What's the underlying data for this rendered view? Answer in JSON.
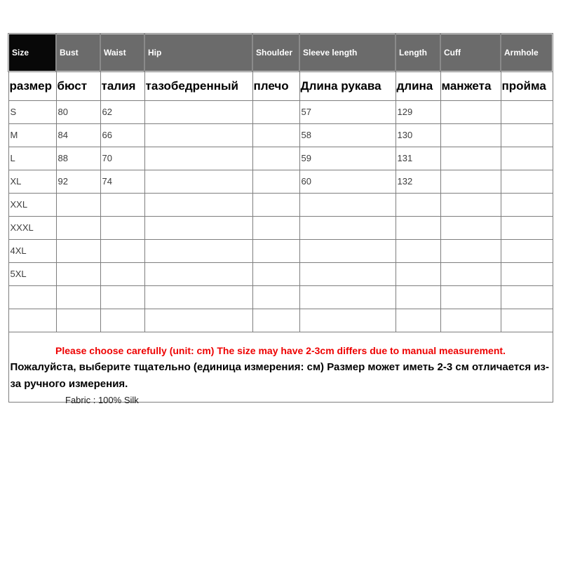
{
  "colors": {
    "header_bg": "#6b6b6b",
    "header_text": "#ffffff",
    "size_cell_bg": "#080808",
    "warning_red": "#ee0000"
  },
  "table": {
    "columns": [
      {
        "key": "size",
        "en": "Size",
        "ru": "размер"
      },
      {
        "key": "bust",
        "en": "Bust",
        "ru": "бюст"
      },
      {
        "key": "waist",
        "en": "Waist",
        "ru": "талия"
      },
      {
        "key": "hip",
        "en": "Hip",
        "ru": "тазобедренный"
      },
      {
        "key": "shoulder",
        "en": "Shoulder",
        "ru": "плечо"
      },
      {
        "key": "sleeve",
        "en": "Sleeve length",
        "ru": "Длина рукава"
      },
      {
        "key": "length",
        "en": "Length",
        "ru": "длина"
      },
      {
        "key": "cuff",
        "en": "Cuff",
        "ru": "манжета"
      },
      {
        "key": "armhole",
        "en": "Armhole",
        "ru": "пройма"
      }
    ],
    "rows": [
      [
        "S",
        "80",
        "62",
        "",
        "",
        "57",
        "129",
        "",
        ""
      ],
      [
        "M",
        "84",
        "66",
        "",
        "",
        "58",
        "130",
        "",
        ""
      ],
      [
        "L",
        "88",
        "70",
        "",
        "",
        "59",
        "131",
        "",
        ""
      ],
      [
        "XL",
        "92",
        "74",
        "",
        "",
        "60",
        "132",
        "",
        ""
      ],
      [
        "XXL",
        "",
        "",
        "",
        "",
        "",
        "",
        "",
        ""
      ],
      [
        "XXXL",
        "",
        "",
        "",
        "",
        "",
        "",
        "",
        ""
      ],
      [
        "4XL",
        "",
        "",
        "",
        "",
        "",
        "",
        "",
        ""
      ],
      [
        "5XL",
        "",
        "",
        "",
        "",
        "",
        "",
        "",
        ""
      ],
      [
        "",
        "",
        "",
        "",
        "",
        "",
        "",
        "",
        ""
      ],
      [
        "",
        "",
        "",
        "",
        "",
        "",
        "",
        "",
        ""
      ]
    ]
  },
  "notes": {
    "warning_en": "Please choose carefully (unit: cm) The size may have 2-3cm differs due to manual measurement.",
    "warning_ru": "Пожалуйста, выберите тщательно (единица измерения: см) Размер может иметь 2-3 см отличается из-за ручного измерения."
  },
  "fabric_note": "Fabric : 100% Silk"
}
